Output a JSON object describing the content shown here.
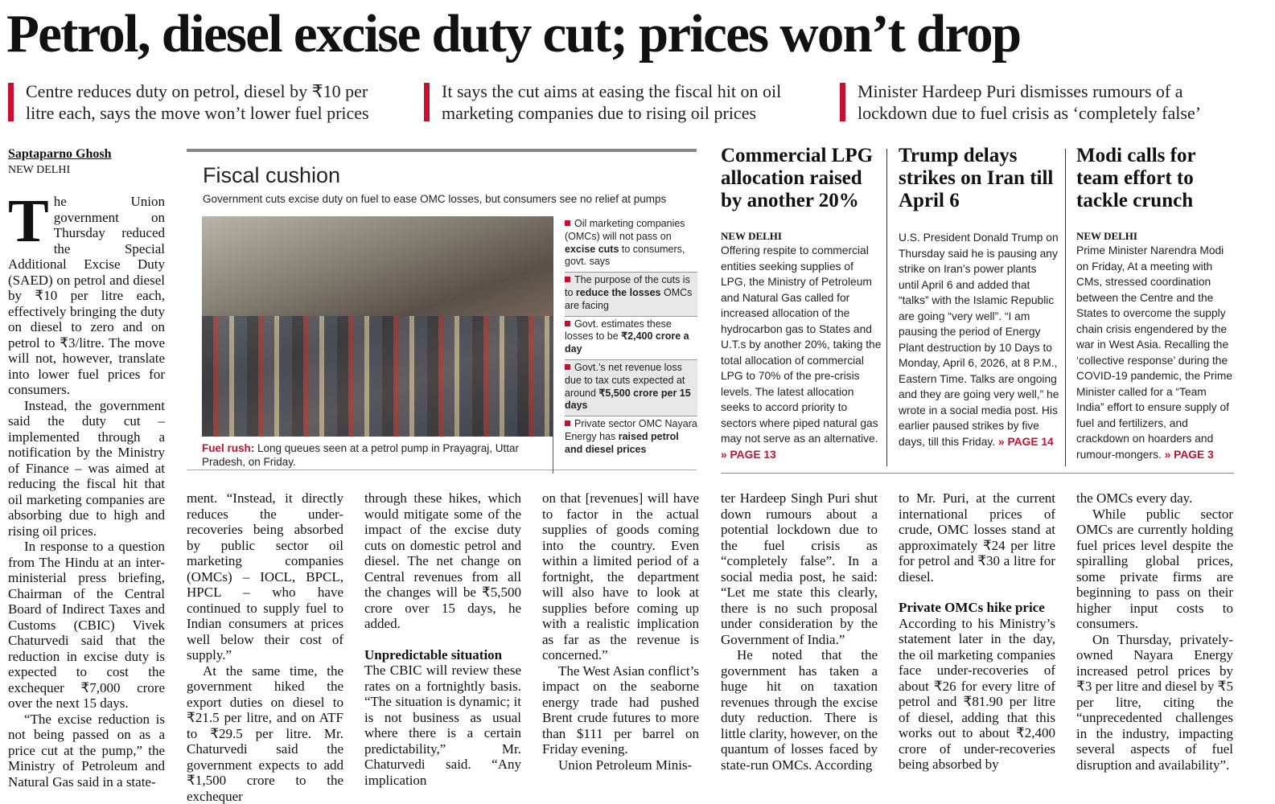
{
  "headline": "Petrol, diesel excise duty cut; prices won’t drop",
  "decks": [
    "Centre reduces duty on petrol, diesel by ₹10 per litre each, says the move won’t lower fuel prices",
    "It says the cut aims at easing the fiscal hit on oil marketing companies due to rising oil prices",
    "Minister Hardeep Puri dismisses rumours of a lockdown due to fuel crisis as ‘completely false’"
  ],
  "byline": "Saptaparno Ghosh",
  "dateline": "NEW DELHI",
  "accent": "#c8102e",
  "graphic": {
    "title": "Fiscal cushion",
    "subtitle": "Government cuts excise duty on fuel to ease OMC losses, but consumers see no relief at pumps",
    "caption_label": "Fuel rush:",
    "caption": " Long queues seen at a petrol pump in Prayagraj, Uttar Pradesh, on Friday.",
    "facts": [
      {
        "pre": "Oil marketing companies (OMCs) will not pass on ",
        "bold": "excise cuts",
        "post": " to consumers, govt. says"
      },
      {
        "pre": "The purpose of the cuts is to ",
        "bold": "reduce the losses",
        "post": " OMCs are facing"
      },
      {
        "pre": "Govt. estimates these losses to be ",
        "bold": "₹2,400 crore a day",
        "post": ""
      },
      {
        "pre": "Govt.’s net revenue loss due to tax cuts expected at around ",
        "bold": "₹5,500 crore per 15 days",
        "post": ""
      },
      {
        "pre": "Private sector OMC Nayara Energy has ",
        "bold": "raised petrol and diesel prices",
        "post": ""
      }
    ]
  },
  "sidebar": [
    {
      "title": "Commercial LPG allocation raised by another 20%",
      "dateline": "NEW DELHI",
      "text": "Offering respite to commercial entities seeking supplies of LPG, the Ministry of Petroleum and Natural Gas called for increased allocation of the hydrocarbon gas to States and U.T.s by another 20%, taking the total allocation of commercial LPG to 70% of the pre-crisis levels. The latest allocation seeks to accord priority to sectors where piped natural gas may not serve as an alternative.",
      "jump": "» PAGE 13"
    },
    {
      "title": "Trump delays strikes on Iran till April 6",
      "dateline": "",
      "text": "U.S. President Donald Trump on Thursday said he is pausing any strike on Iran’s power plants until April 6 and added that “talks” with the Islamic Republic are going “very well”. “I am pausing the period of Energy Plant destruction by 10 Days to Monday, April 6, 2026, at 8 P.M., Eastern Time. Talks are ongoing and they are going very well,” he wrote in a social media post. His earlier paused strikes by five days, till this Friday.",
      "jump": "» PAGE 14"
    },
    {
      "title": "Modi calls for team effort to tackle crunch",
      "dateline": "NEW DELHI",
      "text": "Prime Minister Narendra Modi on Friday, At a meeting with CMs, stressed coordination between the Centre and the States to overcome the supply chain crisis engendered by the war in West Asia. Recalling the ‘collective response’ during the COVID-19 pandemic, the Prime Minister called for a “Team India” effort to ensure supply of fuel and fertilizers, and crackdown on hoarders and rumour-mongers.",
      "jump": "» PAGE 3"
    }
  ],
  "body": {
    "dropcap": "T",
    "c0": [
      "he Union government on Thursday reduced the Special Additional Excise Duty (SAED) on petrol and diesel by ₹10 per litre each, effectively bringing the duty on diesel to zero and on petrol to ₹3/litre. The move will not, however, translate into lower fuel prices for consumers.",
      "Instead, the government said the duty cut – implemented through a notification by the Ministry of Finance – was aimed at reducing the fiscal hit that oil marketing companies are absorbing due to high and rising oil prices.",
      "In response to a question from The Hindu at an inter-ministerial press briefing, Chairman of the Central Board of Indirect Taxes and Customs (CBIC) Vivek Chaturvedi said that the reduction in excise duty is expected to cost the exchequer ₹7,000 crore over the next 15 days.",
      "“The excise reduction is not being passed on as a price cut at the pump,” the Ministry of Petroleum and Natural Gas said in a state-"
    ],
    "c1": [
      "ment. “Instead, it directly reduces the under-recoveries being absorbed by public sector oil marketing companies (OMCs) – IOCL, BPCL, HPCL – who have continued to supply fuel to Indian consumers at prices well below their cost of supply.”",
      "At the same time, the government hiked the export duties on diesel to ₹21.5 per litre, and on ATF to ₹29.5 per litre. Mr. Chaturvedi said the government expects to add ₹1,500 crore to the exchequer"
    ],
    "c2": [
      "through these hikes, which would mitigate some of the impact of the excise duty cuts on domestic petrol and diesel. The net change on Central revenues from all the changes will be ₹5,500 crore over 15 days, he added.",
      "The CBIC will review these rates on a fortnightly basis. “The situation is dynamic; it is not business as usual where there is a certain predictability,” Mr. Chaturvedi said. “Any implication"
    ],
    "c2_head": "Unpredictable situation",
    "c3": [
      "on that [revenues] will have to factor in the actual supplies of goods coming into the country. Even within a limited period of a fortnight, the department will also have to look at supplies before coming up with a realistic implication as far as the revenue is concerned.”",
      "The West Asian conflict’s impact on the seaborne energy trade had pushed Brent crude futures to more than $111 per barrel on Friday evening.",
      "Union Petroleum Minis-"
    ],
    "c4": [
      "ter Hardeep Singh Puri shut down rumours about a potential lockdown due to the fuel crisis as “completely false”. In a social media post, he said: “Let me state this clearly, there is no such proposal under consideration by the Government of India.”",
      "He noted that the government has taken a huge hit on taxation revenues through the excise duty reduction. There is little clarity, however, on the quantum of losses faced by state-run OMCs. According"
    ],
    "c5": [
      "to Mr. Puri, at the current international prices of crude, OMC losses stand at approximately ₹24 per litre for petrol and ₹30 a litre for diesel.",
      "According to his Ministry’s statement later in the day, the oil marketing companies face under-recoveries of about ₹26 for every litre of petrol and ₹81.90 per litre of diesel, adding that this works out to about ₹2,400 crore of under-recoveries being absorbed by"
    ],
    "c5_head": "Private OMCs hike price",
    "c6": [
      "the OMCs every day.",
      "While public sector OMCs are currently holding fuel prices level despite the spiralling global prices, some private firms are beginning to pass on their higher input costs to consumers.",
      "On Thursday, privately-owned Nayara Energy increased petrol prices by ₹3 per litre and diesel by ₹5 per litre, citing the “unprecedented challenges in the industry, impacting several aspects of fuel disruption and availability”."
    ]
  }
}
